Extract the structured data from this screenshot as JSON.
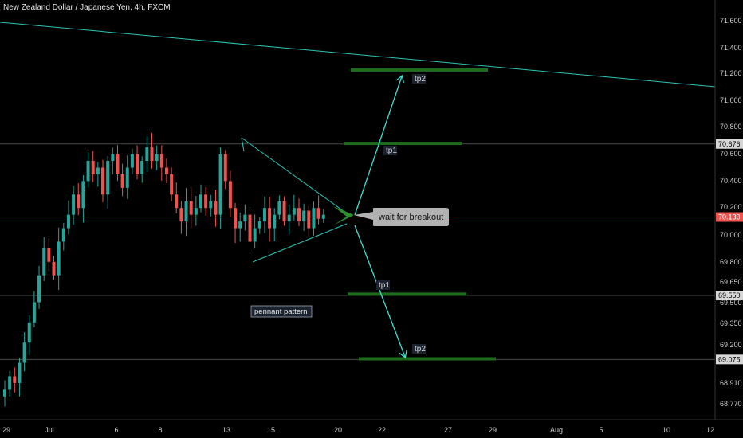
{
  "header": {
    "title": "New Zealand Dollar / Japanese Yen, 4h, FXCM"
  },
  "annotations": {
    "tp1_upper": "tp1",
    "tp2_upper": "tp2",
    "tp1_lower": "tp1",
    "tp2_lower": "tp2",
    "callout": "wait for breakout",
    "pattern": "pennant pattern"
  },
  "price_axis": {
    "ticks": [
      "71.600",
      "71.400",
      "71.200",
      "71.000",
      "70.800",
      "70.600",
      "70.400",
      "70.200",
      "70.000",
      "69.800",
      "69.650",
      "69.500",
      "69.350",
      "69.200",
      "69.060",
      "68.910",
      "68.770"
    ],
    "badges": [
      {
        "label": "70.676",
        "color": "#d6d6d6",
        "text_color": "#000000"
      },
      {
        "label": "70.133",
        "color": "#ef5350",
        "text_color": "#ffffff"
      },
      {
        "label": "69.550",
        "color": "#d6d6d6",
        "text_color": "#000000"
      },
      {
        "label": "69.075",
        "color": "#d6d6d6",
        "text_color": "#000000"
      }
    ]
  },
  "time_axis": {
    "ticks": [
      "29",
      "Jul",
      "6",
      "8",
      "13",
      "15",
      "20",
      "22",
      "27",
      "29",
      "Aug",
      "5",
      "10",
      "12"
    ]
  },
  "colors": {
    "bull": "#26a69a",
    "bear": "#ef5350",
    "target": "#1e6b1e",
    "trend": "#2bc4b4",
    "arrow": "#40e0d0"
  },
  "chart_data": {
    "type": "candlestick",
    "symbol": "NZD/JPY",
    "timeframe": "4h",
    "ylim": [
      68.7,
      71.7
    ],
    "levels": {
      "hline_top": 70.676,
      "current": 70.133,
      "hline_mid": 69.55,
      "hline_low": 69.075,
      "tp2_upper": 71.225,
      "tp1_upper": 70.68,
      "tp1_lower": 69.56,
      "tp2_lower": 69.08
    }
  }
}
